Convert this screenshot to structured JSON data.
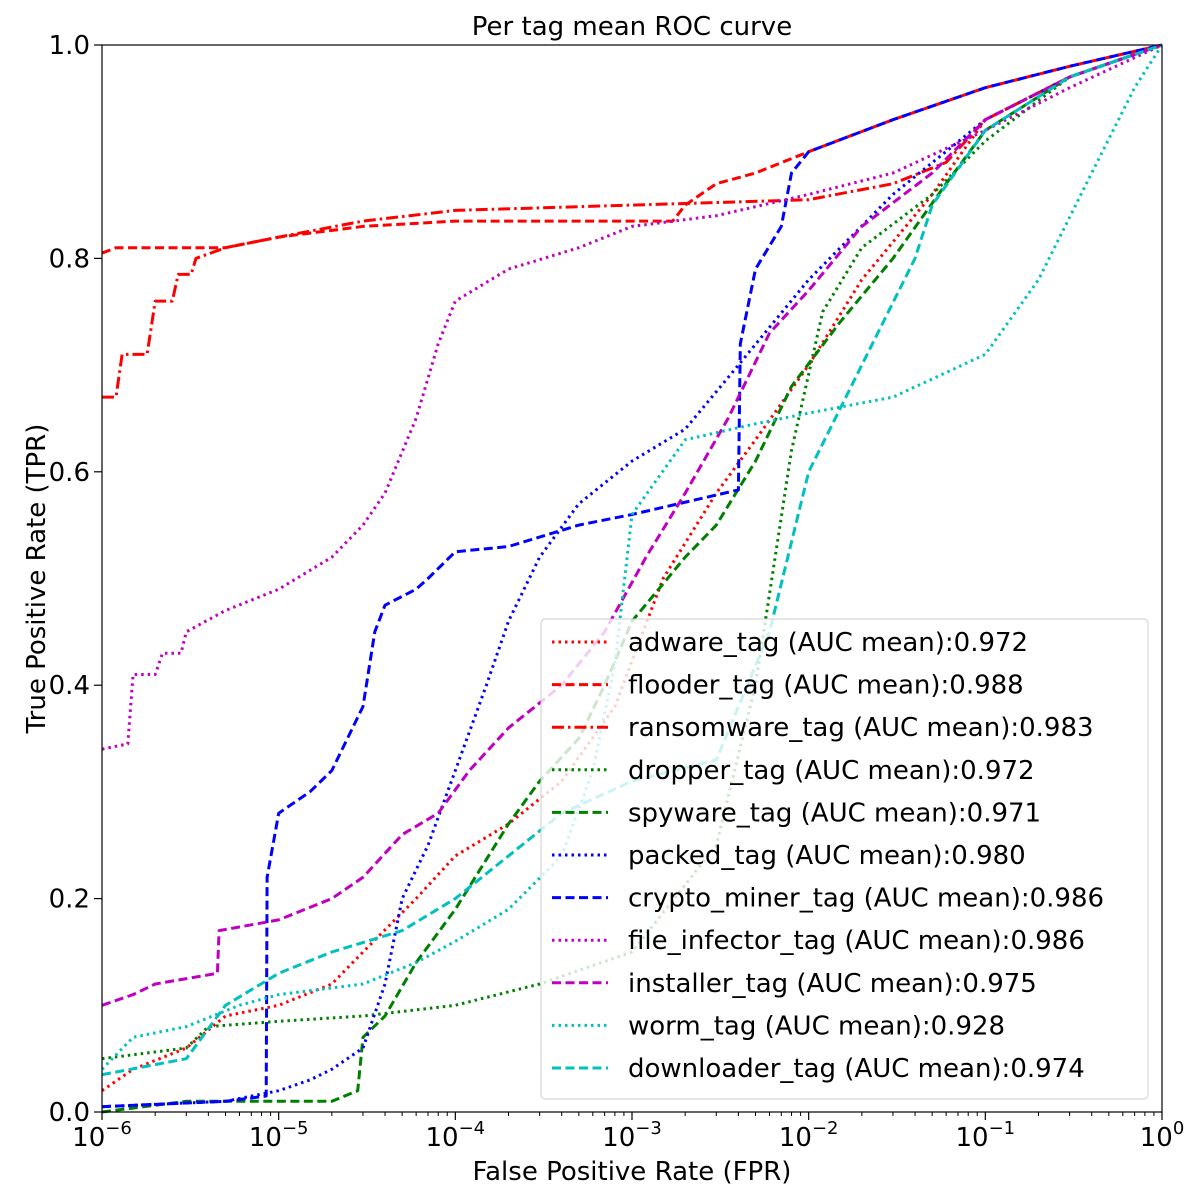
{
  "chart_data": {
    "type": "line",
    "title": "Per tag mean ROC curve",
    "xlabel": "False Positive Rate (FPR)",
    "ylabel": "True Positive Rate (TPR)",
    "xscale": "log",
    "xlim": [
      1e-06,
      1
    ],
    "ylim": [
      0,
      1
    ],
    "x_ticks": [
      {
        "value": 1e-06,
        "base": "10",
        "exp": "−6"
      },
      {
        "value": 1e-05,
        "base": "10",
        "exp": "−5"
      },
      {
        "value": 0.0001,
        "base": "10",
        "exp": "−4"
      },
      {
        "value": 0.001,
        "base": "10",
        "exp": "−3"
      },
      {
        "value": 0.01,
        "base": "10",
        "exp": "−2"
      },
      {
        "value": 0.1,
        "base": "10",
        "exp": "−1"
      },
      {
        "value": 1,
        "base": "10",
        "exp": "0"
      }
    ],
    "y_ticks": [
      {
        "value": 0.0,
        "label": "0.0"
      },
      {
        "value": 0.2,
        "label": "0.2"
      },
      {
        "value": 0.4,
        "label": "0.4"
      },
      {
        "value": 0.6,
        "label": "0.6"
      },
      {
        "value": 0.8,
        "label": "0.8"
      },
      {
        "value": 1.0,
        "label": "1.0"
      }
    ],
    "grid": false,
    "legend_position": "lower-right",
    "series": [
      {
        "name": "adware_tag (AUC mean):0.972",
        "color": "#ff0000",
        "style": "dotted",
        "points": [
          [
            1e-06,
            0.02
          ],
          [
            1.5e-06,
            0.04
          ],
          [
            3e-06,
            0.06
          ],
          [
            5e-06,
            0.09
          ],
          [
            1e-05,
            0.1
          ],
          [
            2e-05,
            0.12
          ],
          [
            3e-05,
            0.15
          ],
          [
            6e-05,
            0.2
          ],
          [
            0.0001,
            0.24
          ],
          [
            0.0002,
            0.27
          ],
          [
            0.0004,
            0.31
          ],
          [
            0.0008,
            0.38
          ],
          [
            0.0015,
            0.5
          ],
          [
            0.003,
            0.58
          ],
          [
            0.005,
            0.63
          ],
          [
            0.01,
            0.7
          ],
          [
            0.02,
            0.78
          ],
          [
            0.05,
            0.86
          ],
          [
            0.1,
            0.93
          ],
          [
            0.3,
            0.97
          ],
          [
            1,
            1.0
          ]
        ]
      },
      {
        "name": "flooder_tag (AUC mean):0.988",
        "color": "#ff0000",
        "style": "dashed",
        "points": [
          [
            1e-06,
            0.805
          ],
          [
            1.2e-06,
            0.81
          ],
          [
            5e-06,
            0.81
          ],
          [
            1e-05,
            0.82
          ],
          [
            3e-05,
            0.83
          ],
          [
            0.0001,
            0.835
          ],
          [
            0.0017,
            0.835
          ],
          [
            0.002,
            0.85
          ],
          [
            0.003,
            0.87
          ],
          [
            0.005,
            0.88
          ],
          [
            0.01,
            0.9
          ],
          [
            0.03,
            0.93
          ],
          [
            0.1,
            0.96
          ],
          [
            0.3,
            0.98
          ],
          [
            1,
            1.0
          ]
        ]
      },
      {
        "name": "ransomware_tag (AUC mean):0.983",
        "color": "#ff0000",
        "style": "dashdot",
        "points": [
          [
            1e-06,
            0.67
          ],
          [
            1.2e-06,
            0.67
          ],
          [
            1.3e-06,
            0.71
          ],
          [
            1.8e-06,
            0.71
          ],
          [
            2e-06,
            0.76
          ],
          [
            2.5e-06,
            0.76
          ],
          [
            2.7e-06,
            0.785
          ],
          [
            3.2e-06,
            0.785
          ],
          [
            3.4e-06,
            0.8
          ],
          [
            5e-06,
            0.81
          ],
          [
            1e-05,
            0.82
          ],
          [
            3e-05,
            0.835
          ],
          [
            0.0001,
            0.845
          ],
          [
            0.001,
            0.85
          ],
          [
            0.01,
            0.855
          ],
          [
            0.03,
            0.87
          ],
          [
            0.06,
            0.89
          ],
          [
            0.1,
            0.93
          ],
          [
            0.3,
            0.97
          ],
          [
            1,
            1.0
          ]
        ]
      },
      {
        "name": "dropper_tag (AUC mean):0.972",
        "color": "#008000",
        "style": "dotted",
        "points": [
          [
            1e-06,
            0.05
          ],
          [
            3e-06,
            0.06
          ],
          [
            4e-06,
            0.08
          ],
          [
            1e-05,
            0.085
          ],
          [
            3e-05,
            0.09
          ],
          [
            0.0001,
            0.1
          ],
          [
            0.0003,
            0.12
          ],
          [
            0.001,
            0.15
          ],
          [
            0.003,
            0.25
          ],
          [
            0.005,
            0.4
          ],
          [
            0.008,
            0.62
          ],
          [
            0.012,
            0.75
          ],
          [
            0.02,
            0.81
          ],
          [
            0.05,
            0.86
          ],
          [
            0.1,
            0.91
          ],
          [
            0.3,
            0.97
          ],
          [
            1,
            1.0
          ]
        ]
      },
      {
        "name": "spyware_tag (AUC mean):0.971",
        "color": "#008000",
        "style": "dashed",
        "points": [
          [
            1e-06,
            0.0
          ],
          [
            3e-06,
            0.01
          ],
          [
            1e-05,
            0.01
          ],
          [
            2e-05,
            0.01
          ],
          [
            2.8e-05,
            0.02
          ],
          [
            3e-05,
            0.07
          ],
          [
            4e-05,
            0.09
          ],
          [
            6e-05,
            0.14
          ],
          [
            0.0001,
            0.19
          ],
          [
            0.0002,
            0.27
          ],
          [
            0.0003,
            0.31
          ],
          [
            0.0005,
            0.35
          ],
          [
            0.0007,
            0.4
          ],
          [
            0.001,
            0.46
          ],
          [
            0.002,
            0.52
          ],
          [
            0.003,
            0.55
          ],
          [
            0.005,
            0.61
          ],
          [
            0.008,
            0.68
          ],
          [
            0.015,
            0.74
          ],
          [
            0.03,
            0.8
          ],
          [
            0.06,
            0.87
          ],
          [
            0.1,
            0.92
          ],
          [
            0.3,
            0.97
          ],
          [
            1,
            1.0
          ]
        ]
      },
      {
        "name": "packed_tag (AUC mean):0.980",
        "color": "#0000ff",
        "style": "dotted",
        "points": [
          [
            1e-06,
            0.005
          ],
          [
            5e-06,
            0.01
          ],
          [
            1e-05,
            0.02
          ],
          [
            1.5e-05,
            0.03
          ],
          [
            2e-05,
            0.04
          ],
          [
            3e-05,
            0.06
          ],
          [
            4e-05,
            0.12
          ],
          [
            5e-05,
            0.2
          ],
          [
            7e-05,
            0.25
          ],
          [
            0.0001,
            0.32
          ],
          [
            0.00015,
            0.4
          ],
          [
            0.0002,
            0.46
          ],
          [
            0.0003,
            0.52
          ],
          [
            0.0005,
            0.57
          ],
          [
            0.001,
            0.61
          ],
          [
            0.002,
            0.64
          ],
          [
            0.004,
            0.7
          ],
          [
            0.01,
            0.78
          ],
          [
            0.03,
            0.86
          ],
          [
            0.1,
            0.93
          ],
          [
            0.3,
            0.97
          ],
          [
            1,
            1.0
          ]
        ]
      },
      {
        "name": "crypto_miner_tag (AUC mean):0.986",
        "color": "#0000ff",
        "style": "dashed",
        "points": [
          [
            1e-06,
            0.005
          ],
          [
            5e-06,
            0.01
          ],
          [
            8.5e-06,
            0.015
          ],
          [
            8.6e-06,
            0.22
          ],
          [
            1e-05,
            0.28
          ],
          [
            1.5e-05,
            0.3
          ],
          [
            2e-05,
            0.32
          ],
          [
            3e-05,
            0.38
          ],
          [
            3.5e-05,
            0.45
          ],
          [
            4e-05,
            0.475
          ],
          [
            6e-05,
            0.49
          ],
          [
            7e-05,
            0.5
          ],
          [
            0.0001,
            0.525
          ],
          [
            0.0002,
            0.53
          ],
          [
            0.0005,
            0.55
          ],
          [
            0.001,
            0.56
          ],
          [
            0.004,
            0.583
          ],
          [
            0.0041,
            0.72
          ],
          [
            0.005,
            0.79
          ],
          [
            0.007,
            0.83
          ],
          [
            0.008,
            0.88
          ],
          [
            0.01,
            0.9
          ],
          [
            0.03,
            0.93
          ],
          [
            0.1,
            0.96
          ],
          [
            0.3,
            0.98
          ],
          [
            1,
            1.0
          ]
        ]
      },
      {
        "name": "file_infector_tag (AUC mean):0.986",
        "color": "#c000c0",
        "style": "dotted",
        "points": [
          [
            1e-06,
            0.34
          ],
          [
            1.4e-06,
            0.345
          ],
          [
            1.5e-06,
            0.41
          ],
          [
            2e-06,
            0.41
          ],
          [
            2.2e-06,
            0.43
          ],
          [
            2.8e-06,
            0.43
          ],
          [
            3e-06,
            0.45
          ],
          [
            5e-06,
            0.47
          ],
          [
            1e-05,
            0.49
          ],
          [
            2e-05,
            0.52
          ],
          [
            3e-05,
            0.55
          ],
          [
            4e-05,
            0.58
          ],
          [
            6e-05,
            0.65
          ],
          [
            8e-05,
            0.72
          ],
          [
            0.0001,
            0.76
          ],
          [
            0.0002,
            0.79
          ],
          [
            0.0005,
            0.81
          ],
          [
            0.001,
            0.83
          ],
          [
            0.003,
            0.84
          ],
          [
            0.01,
            0.86
          ],
          [
            0.03,
            0.88
          ],
          [
            0.1,
            0.92
          ],
          [
            0.3,
            0.96
          ],
          [
            1,
            1.0
          ]
        ]
      },
      {
        "name": "installer_tag (AUC mean):0.975",
        "color": "#c000c0",
        "style": "dashed",
        "points": [
          [
            1e-06,
            0.1
          ],
          [
            1.5e-06,
            0.11
          ],
          [
            2e-06,
            0.12
          ],
          [
            4.5e-06,
            0.13
          ],
          [
            4.6e-06,
            0.17
          ],
          [
            1e-05,
            0.18
          ],
          [
            2e-05,
            0.2
          ],
          [
            3e-05,
            0.22
          ],
          [
            5e-05,
            0.26
          ],
          [
            8e-05,
            0.28
          ],
          [
            0.00012,
            0.32
          ],
          [
            0.0002,
            0.36
          ],
          [
            0.0004,
            0.4
          ],
          [
            0.0007,
            0.45
          ],
          [
            0.0012,
            0.52
          ],
          [
            0.002,
            0.58
          ],
          [
            0.0035,
            0.65
          ],
          [
            0.006,
            0.73
          ],
          [
            0.01,
            0.77
          ],
          [
            0.02,
            0.83
          ],
          [
            0.05,
            0.88
          ],
          [
            0.1,
            0.93
          ],
          [
            0.3,
            0.97
          ],
          [
            1,
            1.0
          ]
        ]
      },
      {
        "name": "worm_tag (AUC mean):0.928",
        "color": "#00c0c0",
        "style": "dotted",
        "points": [
          [
            1e-06,
            0.04
          ],
          [
            1.5e-06,
            0.07
          ],
          [
            3e-06,
            0.08
          ],
          [
            6e-06,
            0.1
          ],
          [
            1e-05,
            0.11
          ],
          [
            3e-05,
            0.12
          ],
          [
            6e-05,
            0.14
          ],
          [
            0.0001,
            0.16
          ],
          [
            0.0002,
            0.19
          ],
          [
            0.0004,
            0.24
          ],
          [
            0.0006,
            0.32
          ],
          [
            0.0008,
            0.42
          ],
          [
            0.001,
            0.56
          ],
          [
            0.002,
            0.63
          ],
          [
            0.005,
            0.645
          ],
          [
            0.01,
            0.655
          ],
          [
            0.03,
            0.67
          ],
          [
            0.1,
            0.71
          ],
          [
            0.2,
            0.78
          ],
          [
            0.4,
            0.88
          ],
          [
            0.7,
            0.96
          ],
          [
            1,
            1.0
          ]
        ]
      },
      {
        "name": "downloader_tag (AUC mean):0.974",
        "color": "#00c0c0",
        "style": "dashed",
        "points": [
          [
            1e-06,
            0.035
          ],
          [
            3e-06,
            0.05
          ],
          [
            5e-06,
            0.1
          ],
          [
            1e-05,
            0.13
          ],
          [
            2e-05,
            0.15
          ],
          [
            5e-05,
            0.17
          ],
          [
            0.0001,
            0.2
          ],
          [
            0.0002,
            0.24
          ],
          [
            0.0004,
            0.28
          ],
          [
            0.001,
            0.31
          ],
          [
            0.003,
            0.33
          ],
          [
            0.006,
            0.45
          ],
          [
            0.01,
            0.6
          ],
          [
            0.02,
            0.7
          ],
          [
            0.04,
            0.8
          ],
          [
            0.05,
            0.85
          ],
          [
            0.1,
            0.92
          ],
          [
            0.3,
            0.97
          ],
          [
            1,
            1.0
          ]
        ]
      }
    ]
  }
}
